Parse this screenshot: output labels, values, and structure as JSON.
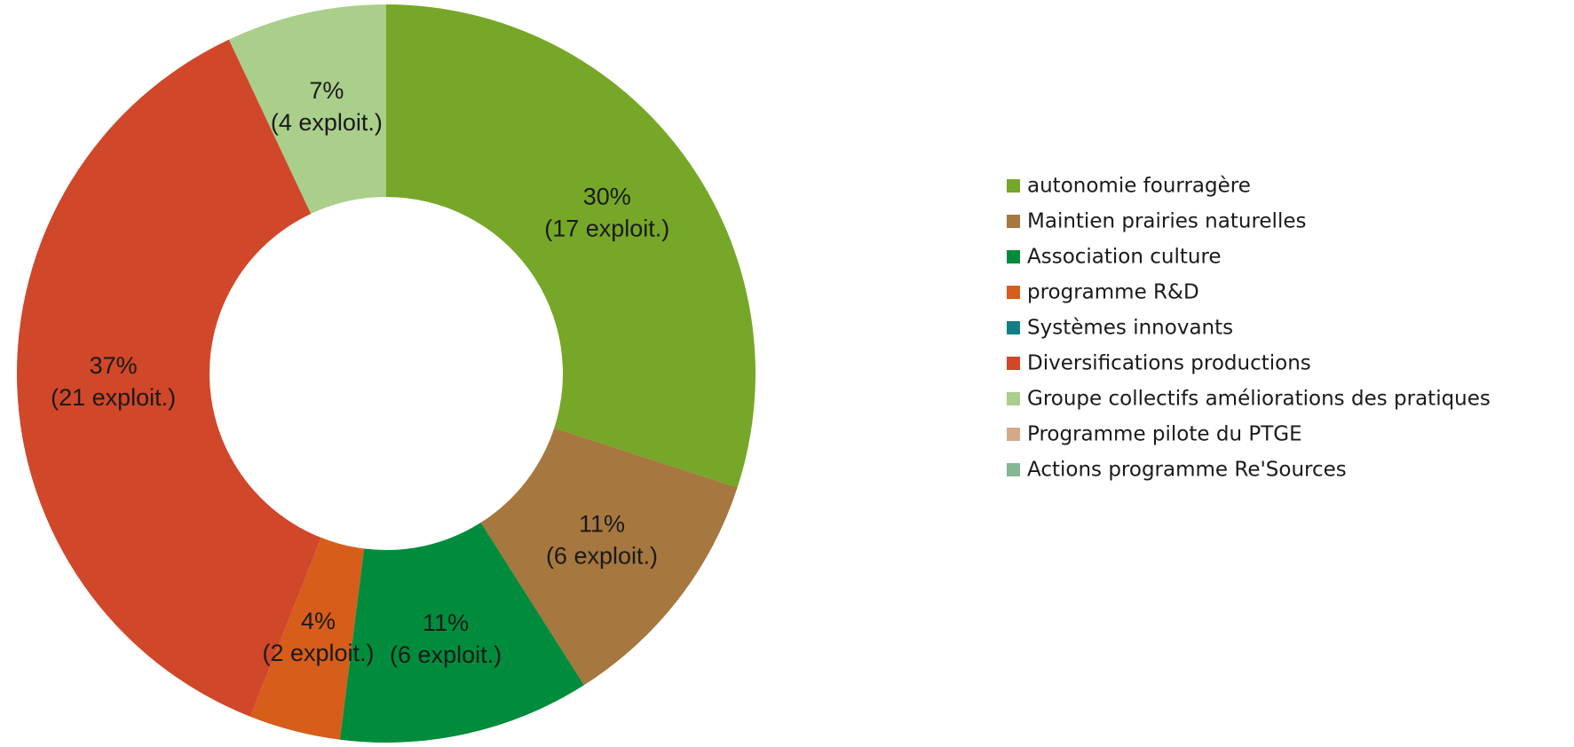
{
  "chart_data": {
    "type": "pie",
    "categories": [
      "autonomie fourragère",
      "Maintien prairies naturelles",
      "Association culture",
      "programme R&D",
      "Systèmes innovants",
      "Diversifications productions",
      "Groupe collectifs améliorations des pratiques",
      "Programme pilote du PTGE",
      "Actions programme Re'Sources"
    ],
    "values": [
      30,
      11,
      11,
      4,
      0,
      37,
      7,
      0,
      0
    ],
    "value_labels": [
      "30%",
      "11%",
      "11%",
      "4%",
      null,
      "37%",
      "7%",
      null,
      null
    ],
    "count_labels": [
      "(17 exploit.)",
      "(6 exploit.)",
      "(6 exploit.)",
      "(2 exploit.)",
      null,
      "(21 exploit.)",
      "(4 exploit.)",
      null,
      null
    ],
    "colors": [
      "#76a728",
      "#a6773f",
      "#008c3c",
      "#d65d1a",
      "#117f87",
      "#d0472a",
      "#a9cf8b",
      "#d4a98a",
      "#84b894"
    ],
    "donut": true,
    "legend": "right"
  }
}
